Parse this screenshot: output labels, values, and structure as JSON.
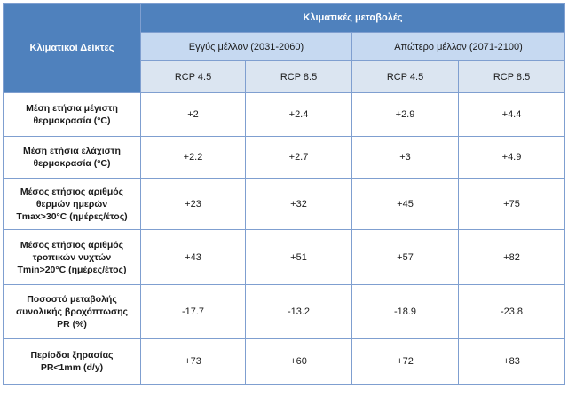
{
  "header": {
    "indicators": "Κλιματικοί Δείκτες",
    "changes": "Κλιματικές μεταβολές",
    "near_future": "Εγγύς μέλλον (2031-2060)",
    "far_future": "Απώτερο μέλλον (2071-2100)",
    "rcp45": "RCP 4.5",
    "rcp85": "RCP 8.5"
  },
  "rows": [
    {
      "label_lines": [
        "Μέση ετήσια μέγιστη",
        "θερμοκρασία (°C)"
      ],
      "values": [
        "+2",
        "+2.4",
        "+2.9",
        "+4.4"
      ]
    },
    {
      "label_lines": [
        "Μέση ετήσια ελάχιστη",
        "θερμοκρασία (°C)"
      ],
      "values": [
        "+2.2",
        "+2.7",
        "+3",
        "+4.9"
      ]
    },
    {
      "label_lines": [
        "Μέσος ετήσιος αριθμός",
        "θερμών ημερών",
        "Tmax>30°C (ημέρες/έτος)"
      ],
      "values": [
        "+23",
        "+32",
        "+45",
        "+75"
      ]
    },
    {
      "label_lines": [
        "Μέσος ετήσιος αριθμός",
        "τροπικών νυχτών",
        "Tmin>20°C (ημέρες/έτος)"
      ],
      "values": [
        "+43",
        "+51",
        "+57",
        "+82"
      ]
    },
    {
      "label_lines": [
        "Ποσοστό μεταβολής",
        "συνολικής βροχόπτωσης",
        "PR (%)"
      ],
      "values": [
        "-17.7",
        "-13.2",
        "-18.9",
        "-23.8"
      ]
    },
    {
      "label_lines": [
        "Περίοδοι ξηρασίας",
        "PR<1mm (d/y)"
      ],
      "values": [
        "+73",
        "+60",
        "+72",
        "+83"
      ]
    }
  ]
}
